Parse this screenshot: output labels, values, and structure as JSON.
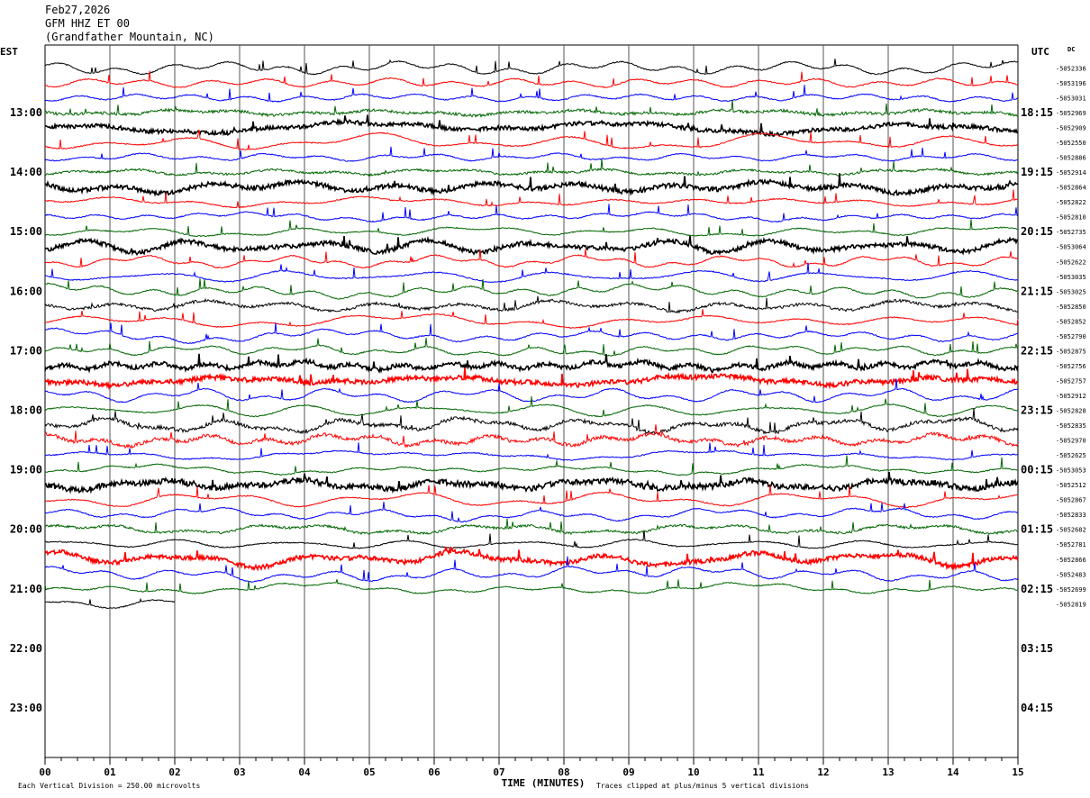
{
  "header": {
    "date": "Feb27,2026",
    "station": "GFM HHZ ET 00",
    "location": "(Grandfather Mountain, NC)"
  },
  "chart_data": {
    "type": "line",
    "title": "Feb27,2026",
    "xlabel": "TIME (MINUTES)",
    "left_axis_label": "EST",
    "right_axis_label": "UTC",
    "right_top_marker": "DC",
    "x_tick_labels": [
      "00",
      "01",
      "02",
      "03",
      "04",
      "05",
      "06",
      "07",
      "08",
      "09",
      "10",
      "11",
      "12",
      "13",
      "14",
      "15"
    ],
    "xlim": [
      0,
      15
    ],
    "left_hour_labels": [
      "13:00",
      "14:00",
      "15:00",
      "16:00",
      "17:00",
      "18:00",
      "19:00",
      "20:00",
      "21:00",
      "22:00",
      "23:00"
    ],
    "right_hour_labels": [
      "18:15",
      "19:15",
      "20:15",
      "21:15",
      "22:15",
      "23:15",
      "00:15",
      "01:15",
      "02:15",
      "03:15",
      "04:15"
    ],
    "trace_colors": [
      "#000000",
      "#ff0000",
      "#0000ff",
      "#006600"
    ],
    "dc_offsets": [
      "-5052336",
      "-5053196",
      "-5053031",
      "-5052969",
      "-5052909",
      "-5052550",
      "-5052886",
      "-5052914",
      "-5052864",
      "-5052822",
      "-5052810",
      "-5052735",
      "-5053064",
      "-5052622",
      "-5053035",
      "-5053025",
      "-5052850",
      "-5052852",
      "-5052790",
      "-5052875",
      "-5052756",
      "-5052757",
      "-5052912",
      "-5052828",
      "-5052835",
      "-5052970",
      "-5052625",
      "-5053053",
      "-5052512",
      "-5052867",
      "-5052833",
      "-5052682",
      "-5052781",
      "-5052866",
      "-5052483",
      "-5052699",
      "-5052819"
    ],
    "last_trace_end_minute": 2.0,
    "footer_left": "Each Vertical Division =  250.00 microvolts",
    "footer_right": "Traces clipped at plus/minus 5 vertical divisions",
    "grid": true
  }
}
